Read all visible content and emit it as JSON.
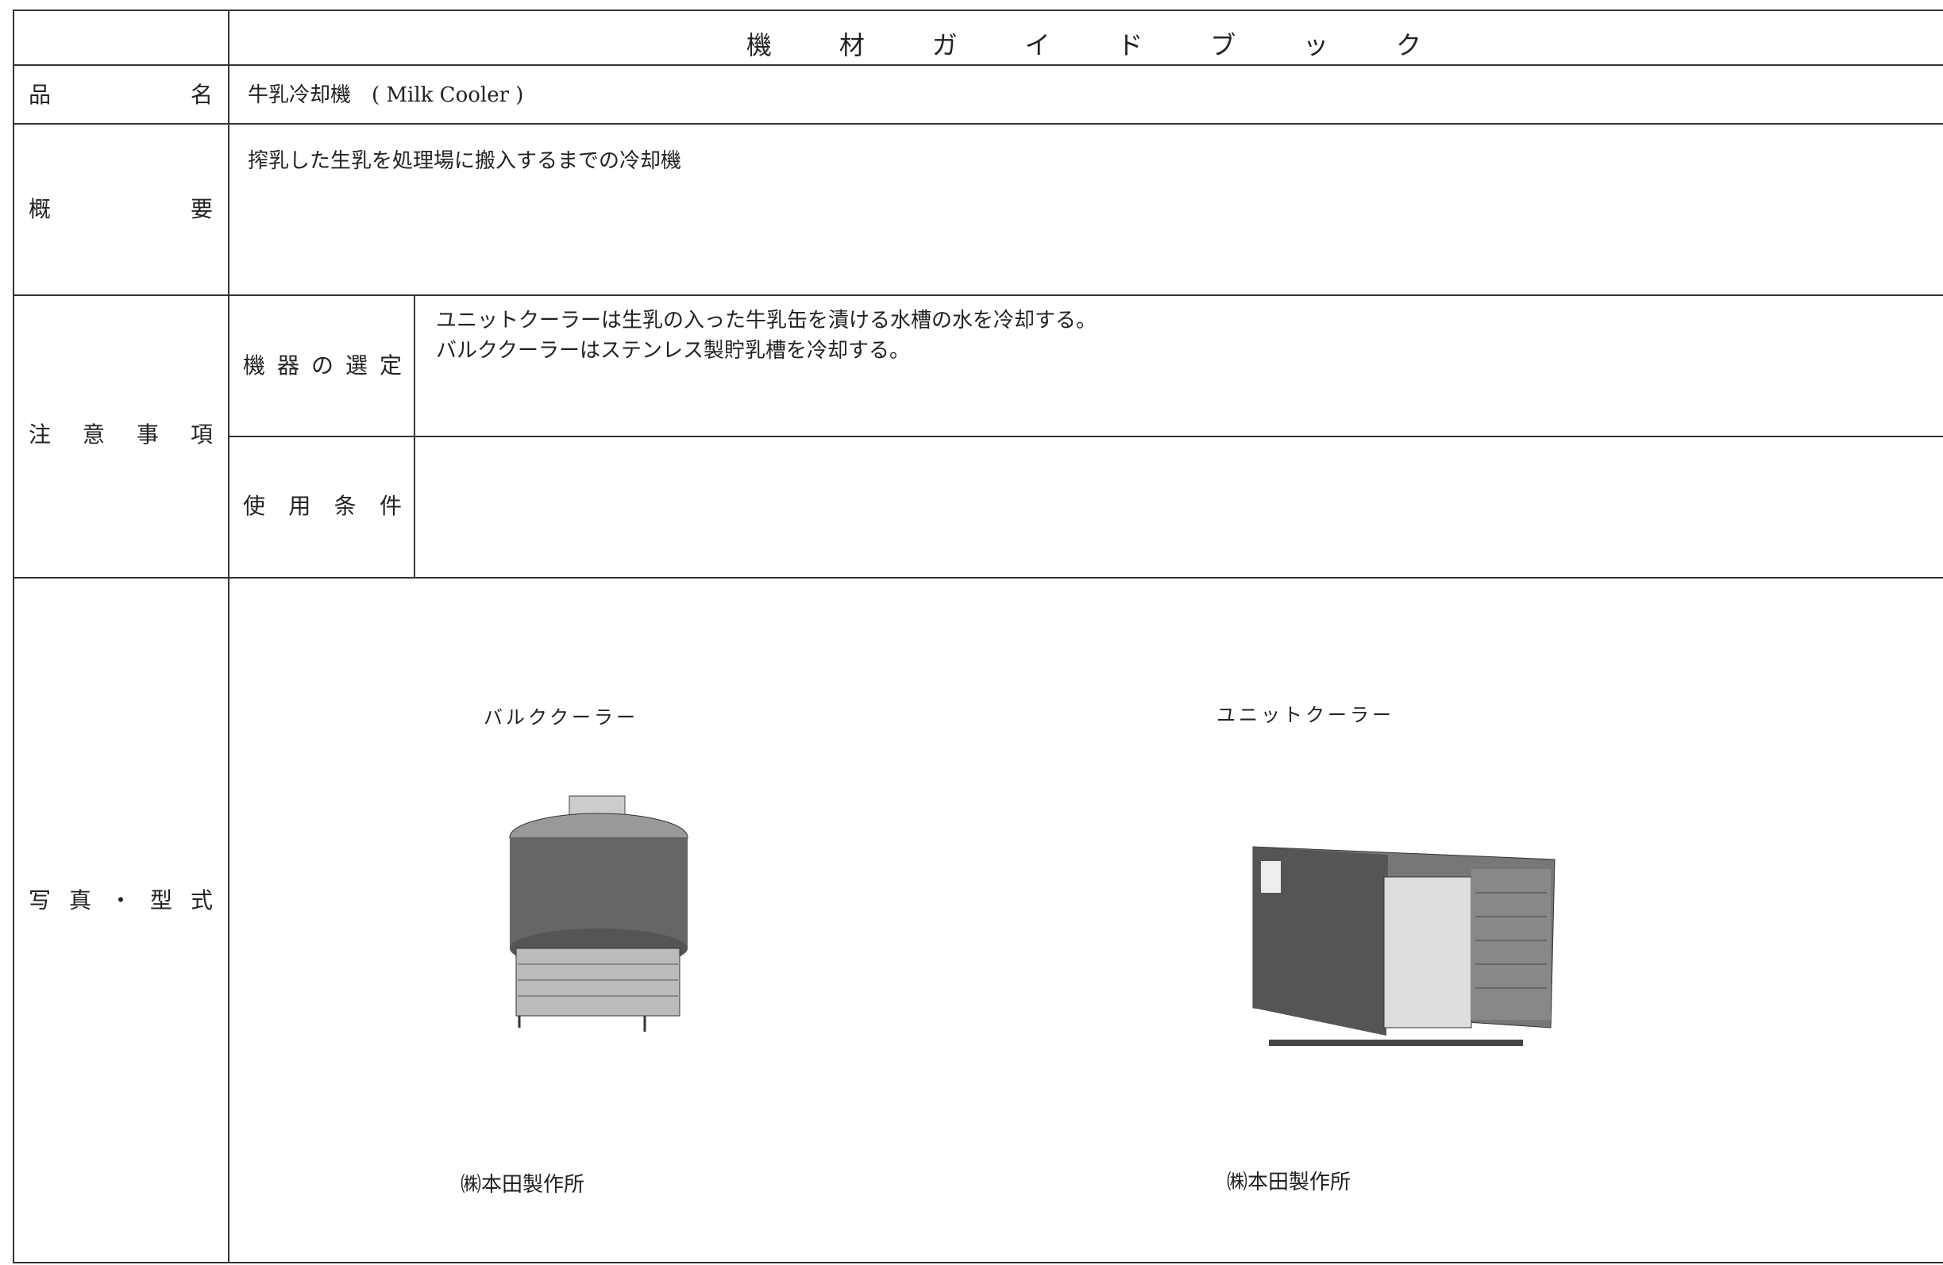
{
  "header": {
    "title": "機材ガイドブック"
  },
  "rows": {
    "name": {
      "label": "品 名",
      "value": "牛乳冷却機　( Milk Cooler )"
    },
    "summary": {
      "label": "概 要",
      "value": "搾乳した生乳を処理場に搬入するまでの冷却機"
    },
    "notes": {
      "label": "注 意 事 項",
      "selection": {
        "label": "機 器 の 選 定",
        "lines": [
          "ユニットクーラーは生乳の入った牛乳缶を漬ける水槽の水を冷却する。",
          "バルククーラーはステンレス製貯乳槽を冷却する。"
        ]
      },
      "conditions": {
        "label": "使 用 条 件"
      }
    },
    "photos": {
      "label": "写 真 ・ 型 式",
      "items": [
        {
          "caption": "バルククーラー",
          "maker": "㈱本田製作所"
        },
        {
          "caption": "ユニットクーラー",
          "maker": "㈱本田製作所"
        }
      ]
    }
  }
}
